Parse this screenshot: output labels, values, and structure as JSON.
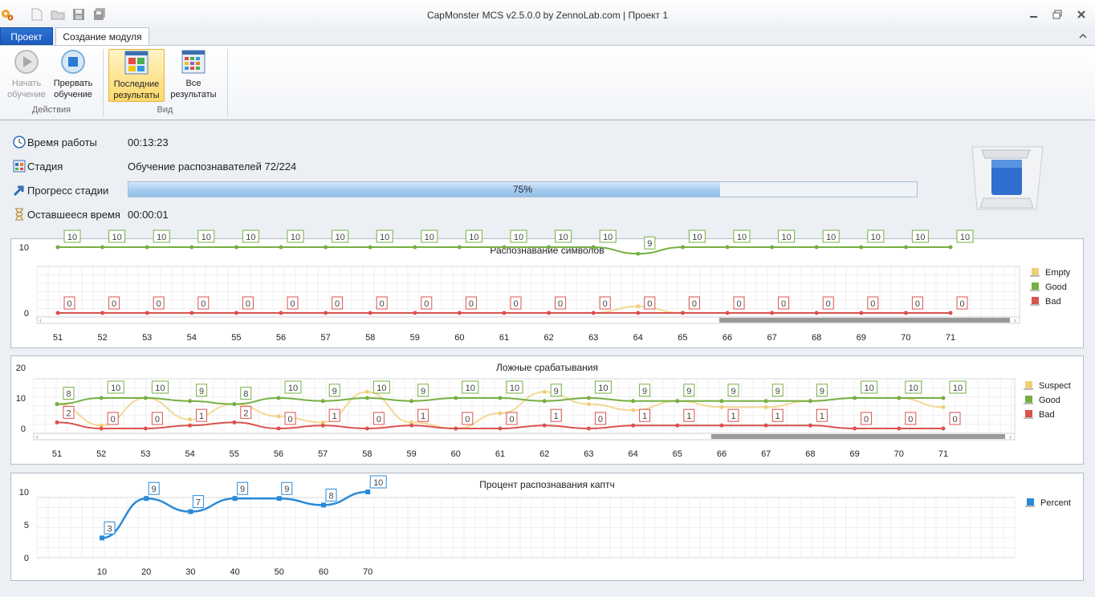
{
  "window": {
    "title": "CapMonster MCS v2.5.0.0 by ZennoLab.com | Проект 1"
  },
  "tabs": [
    {
      "label": "Проект"
    },
    {
      "label": "Создание модуля"
    }
  ],
  "ribbon": {
    "buttons": [
      {
        "label1": "Начать",
        "label2": "обучение"
      },
      {
        "label1": "Прервать",
        "label2": "обучение"
      },
      {
        "label1": "Последние",
        "label2": "результаты"
      },
      {
        "label1": "Все",
        "label2": "результаты"
      }
    ],
    "groups": [
      {
        "label": "Действия"
      },
      {
        "label": "Вид"
      }
    ]
  },
  "status": {
    "uptime_label": "Время работы",
    "uptime": "00:13:23",
    "stage_label": "Стадия",
    "stage": "Обучение распознавателей 72/224",
    "progress_label": "Прогресс стадии",
    "progress_text": "75%",
    "progress_value": 0.75,
    "remaining_label": "Оставшееся время",
    "remaining": "00:00:01"
  },
  "chart_data": [
    {
      "type": "line",
      "title": "Распознавание символов",
      "x": [
        51,
        52,
        53,
        54,
        55,
        56,
        57,
        58,
        59,
        60,
        61,
        62,
        63,
        64,
        65,
        66,
        67,
        68,
        69,
        70,
        71
      ],
      "ylim": [
        0,
        10
      ],
      "yticks": [
        0,
        10
      ],
      "series": [
        {
          "name": "Empty",
          "color": "#f0cf7c",
          "values": [
            0,
            0,
            0,
            0,
            0,
            0,
            0,
            0,
            0,
            0,
            0,
            0,
            0,
            1,
            0,
            0,
            0,
            0,
            0,
            0,
            0
          ],
          "labels": false
        },
        {
          "name": "Good",
          "color": "#76b043",
          "values": [
            10,
            10,
            10,
            10,
            10,
            10,
            10,
            10,
            10,
            10,
            10,
            10,
            10,
            9,
            10,
            10,
            10,
            10,
            10,
            10,
            10
          ],
          "labels": true
        },
        {
          "name": "Bad",
          "color": "#d9534f",
          "values": [
            0,
            0,
            0,
            0,
            0,
            0,
            0,
            0,
            0,
            0,
            0,
            0,
            0,
            0,
            0,
            0,
            0,
            0,
            0,
            0,
            0
          ],
          "labels": true
        }
      ]
    },
    {
      "type": "line",
      "title": "Ложные срабатывания",
      "x": [
        51,
        52,
        53,
        54,
        55,
        56,
        57,
        58,
        59,
        60,
        61,
        62,
        63,
        64,
        65,
        66,
        67,
        68,
        69,
        70,
        71
      ],
      "ylim": [
        0,
        20
      ],
      "yticks": [
        0,
        10,
        20
      ],
      "series": [
        {
          "name": "Suspect",
          "color": "#f0cf7c",
          "values": [
            8,
            1,
            10,
            3,
            8,
            4,
            2,
            12,
            2,
            0,
            5,
            12,
            8,
            6,
            9,
            7,
            7,
            9,
            10,
            10,
            7
          ],
          "labels": false
        },
        {
          "name": "Good",
          "color": "#76b043",
          "values": [
            8,
            10,
            10,
            9,
            8,
            10,
            9,
            10,
            9,
            10,
            10,
            9,
            10,
            9,
            9,
            9,
            9,
            9,
            10,
            10,
            10
          ],
          "labels": true
        },
        {
          "name": "Bad",
          "color": "#d9534f",
          "values": [
            2,
            0,
            0,
            1,
            2,
            0,
            1,
            0,
            1,
            0,
            0,
            1,
            0,
            1,
            1,
            1,
            1,
            1,
            0,
            0,
            0
          ],
          "labels": true
        }
      ]
    },
    {
      "type": "line",
      "title": "Процент распознавания каптч",
      "x": [
        10,
        20,
        30,
        40,
        50,
        60,
        70
      ],
      "ylim": [
        0,
        10
      ],
      "yticks": [
        0,
        5,
        10
      ],
      "series": [
        {
          "name": "Percent",
          "color": "#2a8ad8",
          "values": [
            3,
            9,
            7,
            9,
            9,
            8,
            10
          ],
          "labels": true
        }
      ]
    }
  ]
}
